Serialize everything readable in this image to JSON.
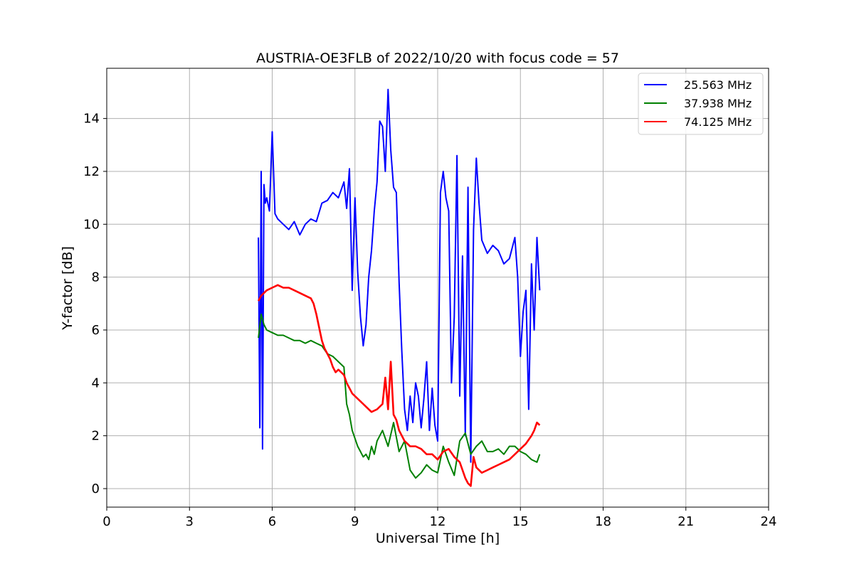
{
  "chart_data": {
    "type": "line",
    "title": "AUSTRIA-OE3FLB of 2022/10/20 with focus code = 57",
    "xlabel": "Universal Time [h]",
    "ylabel": "Y-factor [dB]",
    "xlim": [
      0,
      24
    ],
    "ylim": [
      -0.7,
      15.9
    ],
    "xticks": [
      0,
      3,
      6,
      9,
      12,
      15,
      18,
      21,
      24
    ],
    "yticks": [
      0,
      2,
      4,
      6,
      8,
      10,
      12,
      14
    ],
    "grid": true,
    "legend_position": "top-right",
    "series": [
      {
        "name": "25.563 MHz",
        "color": "#0000ff",
        "x": [
          5.5,
          5.55,
          5.6,
          5.65,
          5.7,
          5.75,
          5.8,
          5.9,
          6.0,
          6.1,
          6.2,
          6.4,
          6.6,
          6.8,
          7.0,
          7.2,
          7.4,
          7.6,
          7.8,
          8.0,
          8.2,
          8.4,
          8.6,
          8.7,
          8.8,
          8.9,
          9.0,
          9.1,
          9.2,
          9.3,
          9.4,
          9.5,
          9.6,
          9.7,
          9.8,
          9.9,
          10.0,
          10.1,
          10.2,
          10.3,
          10.4,
          10.5,
          10.6,
          10.7,
          10.8,
          10.9,
          11.0,
          11.1,
          11.2,
          11.3,
          11.4,
          11.5,
          11.6,
          11.7,
          11.8,
          11.9,
          12.0,
          12.1,
          12.2,
          12.3,
          12.4,
          12.5,
          12.6,
          12.7,
          12.8,
          12.9,
          13.0,
          13.1,
          13.2,
          13.3,
          13.4,
          13.5,
          13.6,
          13.8,
          14.0,
          14.2,
          14.4,
          14.6,
          14.8,
          14.9,
          15.0,
          15.1,
          15.2,
          15.3,
          15.4,
          15.5,
          15.6,
          15.7
        ],
        "y": [
          9.5,
          2.3,
          12.0,
          1.5,
          11.5,
          10.8,
          11.0,
          10.5,
          13.5,
          10.4,
          10.2,
          10.0,
          9.8,
          10.1,
          9.6,
          10.0,
          10.2,
          10.1,
          10.8,
          10.9,
          11.2,
          11.0,
          11.6,
          10.6,
          12.1,
          7.5,
          11.0,
          8.2,
          6.5,
          5.4,
          6.2,
          8.0,
          9.0,
          10.5,
          11.6,
          13.9,
          13.7,
          12.0,
          15.1,
          12.8,
          11.4,
          11.2,
          7.8,
          5.2,
          3.0,
          2.2,
          3.5,
          2.5,
          4.0,
          3.5,
          2.3,
          3.4,
          4.8,
          2.2,
          3.8,
          2.4,
          1.8,
          11.2,
          12.0,
          11.0,
          10.5,
          4.0,
          6.5,
          12.6,
          3.5,
          8.8,
          2.0,
          11.4,
          1.0,
          9.8,
          12.5,
          10.8,
          9.4,
          8.9,
          9.2,
          9.0,
          8.5,
          8.7,
          9.5,
          8.0,
          5.0,
          6.7,
          7.5,
          3.0,
          8.5,
          6.0,
          9.5,
          7.5
        ]
      },
      {
        "name": "37.938 MHz",
        "color": "#008000",
        "x": [
          5.5,
          5.6,
          5.7,
          5.8,
          6.0,
          6.2,
          6.4,
          6.6,
          6.8,
          7.0,
          7.2,
          7.4,
          7.6,
          7.8,
          8.0,
          8.2,
          8.4,
          8.6,
          8.7,
          8.8,
          8.9,
          9.0,
          9.1,
          9.2,
          9.3,
          9.4,
          9.5,
          9.6,
          9.7,
          9.8,
          10.0,
          10.2,
          10.4,
          10.6,
          10.8,
          11.0,
          11.2,
          11.4,
          11.6,
          11.8,
          12.0,
          12.2,
          12.4,
          12.6,
          12.8,
          13.0,
          13.2,
          13.4,
          13.6,
          13.8,
          14.0,
          14.2,
          14.4,
          14.6,
          14.8,
          15.0,
          15.2,
          15.4,
          15.6,
          15.7
        ],
        "y": [
          5.7,
          6.6,
          6.2,
          6.0,
          5.9,
          5.8,
          5.8,
          5.7,
          5.6,
          5.6,
          5.5,
          5.6,
          5.5,
          5.4,
          5.1,
          5.0,
          4.8,
          4.6,
          3.2,
          2.8,
          2.2,
          1.9,
          1.6,
          1.4,
          1.2,
          1.3,
          1.1,
          1.6,
          1.3,
          1.8,
          2.2,
          1.6,
          2.5,
          1.4,
          1.8,
          0.7,
          0.4,
          0.6,
          0.9,
          0.7,
          0.6,
          1.6,
          1.0,
          0.5,
          1.8,
          2.1,
          1.3,
          1.6,
          1.8,
          1.4,
          1.4,
          1.5,
          1.3,
          1.6,
          1.6,
          1.4,
          1.3,
          1.1,
          1.0,
          1.3
        ]
      },
      {
        "name": "74.125 MHz",
        "color": "#ff0000",
        "x": [
          5.5,
          5.6,
          5.7,
          5.8,
          6.0,
          6.2,
          6.4,
          6.6,
          6.8,
          7.0,
          7.2,
          7.4,
          7.5,
          7.6,
          7.7,
          7.8,
          7.9,
          8.0,
          8.1,
          8.2,
          8.3,
          8.4,
          8.5,
          8.6,
          8.7,
          8.8,
          8.9,
          9.0,
          9.2,
          9.4,
          9.6,
          9.8,
          10.0,
          10.1,
          10.2,
          10.3,
          10.4,
          10.5,
          10.6,
          10.8,
          11.0,
          11.2,
          11.4,
          11.6,
          11.8,
          12.0,
          12.2,
          12.4,
          12.6,
          12.8,
          13.0,
          13.1,
          13.2,
          13.3,
          13.4,
          13.6,
          13.8,
          14.0,
          14.2,
          14.4,
          14.6,
          14.8,
          15.0,
          15.2,
          15.4,
          15.5,
          15.6,
          15.7
        ],
        "y": [
          7.1,
          7.3,
          7.4,
          7.5,
          7.6,
          7.7,
          7.6,
          7.6,
          7.5,
          7.4,
          7.3,
          7.2,
          7.0,
          6.6,
          6.1,
          5.6,
          5.3,
          5.1,
          4.9,
          4.6,
          4.4,
          4.5,
          4.4,
          4.3,
          4.0,
          3.8,
          3.6,
          3.5,
          3.3,
          3.1,
          2.9,
          3.0,
          3.2,
          4.2,
          3.0,
          4.8,
          2.8,
          2.6,
          2.2,
          1.8,
          1.6,
          1.6,
          1.5,
          1.3,
          1.3,
          1.1,
          1.4,
          1.5,
          1.2,
          1.0,
          0.4,
          0.2,
          0.1,
          1.2,
          0.8,
          0.6,
          0.7,
          0.8,
          0.9,
          1.0,
          1.1,
          1.3,
          1.5,
          1.7,
          2.0,
          2.2,
          2.5,
          2.4
        ]
      }
    ]
  }
}
